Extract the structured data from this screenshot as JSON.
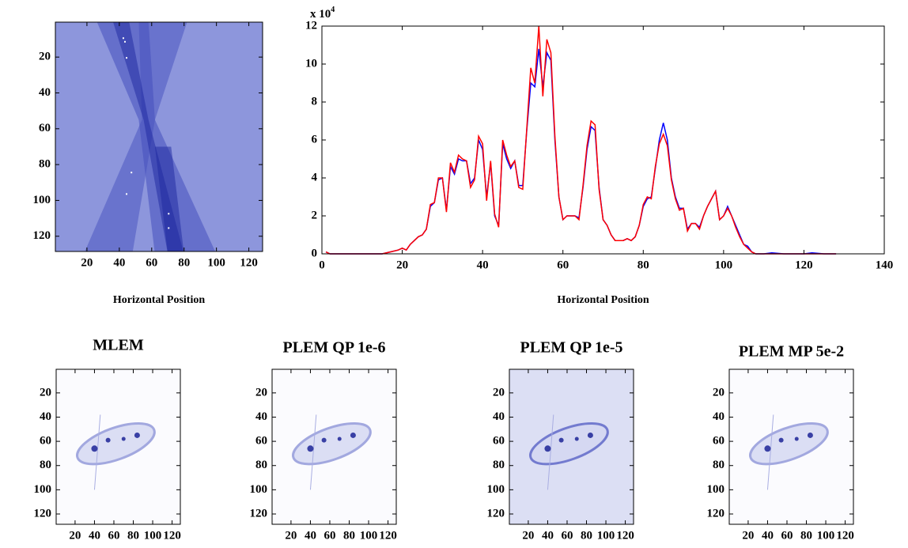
{
  "chart_data": [
    {
      "type": "image",
      "xlabel": "Horizontal Position",
      "xlim": [
        0.5,
        128.5
      ],
      "ylim": [
        0.5,
        128.5
      ],
      "y_reversed": true,
      "xticks": [
        20,
        40,
        60,
        80,
        100,
        120
      ],
      "yticks": [
        20,
        40,
        60,
        80,
        100,
        120
      ]
    },
    {
      "type": "line",
      "xlabel": "Horizontal Position",
      "y_scale_label": "x 10",
      "y_scale_exponent": 4,
      "xlim": [
        0,
        140
      ],
      "ylim": [
        0,
        12
      ],
      "xticks": [
        0,
        20,
        40,
        60,
        80,
        100,
        120,
        140
      ],
      "yticks": [
        0,
        2,
        4,
        6,
        8,
        10,
        12
      ],
      "x": [
        1,
        2,
        5,
        10,
        15,
        17,
        19,
        20,
        21,
        22,
        24,
        25,
        26,
        27,
        28,
        29,
        30,
        31,
        32,
        33,
        34,
        35,
        36,
        37,
        38,
        39,
        40,
        41,
        42,
        43,
        44,
        45,
        46,
        47,
        48,
        49,
        50,
        51,
        52,
        53,
        54,
        55,
        56,
        57,
        58,
        59,
        60,
        61,
        62,
        63,
        64,
        65,
        66,
        67,
        68,
        69,
        70,
        71,
        72,
        73,
        74,
        75,
        76,
        77,
        78,
        79,
        80,
        81,
        82,
        83,
        84,
        85,
        86,
        87,
        88,
        89,
        90,
        91,
        92,
        93,
        94,
        95,
        96,
        97,
        98,
        99,
        100,
        101,
        102,
        103,
        104,
        105,
        106,
        107,
        108,
        110,
        112,
        115,
        120,
        122,
        125,
        128
      ],
      "series": [
        {
          "color": "#0000ff",
          "values": [
            0.1,
            0,
            0,
            0,
            0,
            0.1,
            0.2,
            0.3,
            0.2,
            0.5,
            0.9,
            1.0,
            1.3,
            2.5,
            2.7,
            3.9,
            4.0,
            2.3,
            4.6,
            4.2,
            5.0,
            4.9,
            4.9,
            3.7,
            4.0,
            6.0,
            5.5,
            3.0,
            4.8,
            2.0,
            1.5,
            5.8,
            5.0,
            4.5,
            4.9,
            3.6,
            3.6,
            6.5,
            9.0,
            8.8,
            10.8,
            8.8,
            10.6,
            10.2,
            6.0,
            3.0,
            1.8,
            2.0,
            2.0,
            2.0,
            1.9,
            3.5,
            5.5,
            6.7,
            6.5,
            3.5,
            1.8,
            1.5,
            1.0,
            0.7,
            0.7,
            0.7,
            0.8,
            0.7,
            0.9,
            1.5,
            2.5,
            2.9,
            3.0,
            4.5,
            6.0,
            6.9,
            6.0,
            4.0,
            3.0,
            2.4,
            2.4,
            1.3,
            1.6,
            1.6,
            1.4,
            2.0,
            2.5,
            2.9,
            3.3,
            1.8,
            2.0,
            2.5,
            2.0,
            1.5,
            1.0,
            0.5,
            0.4,
            0.1,
            0,
            0,
            0.05,
            0,
            0,
            0.05,
            0,
            0
          ]
        },
        {
          "color": "#ff0000",
          "values": [
            0.1,
            0,
            0,
            0,
            0,
            0.1,
            0.2,
            0.3,
            0.2,
            0.5,
            0.9,
            1.0,
            1.3,
            2.6,
            2.7,
            4.0,
            4.0,
            2.2,
            4.8,
            4.3,
            5.2,
            5.0,
            4.9,
            3.5,
            3.9,
            6.2,
            5.8,
            2.8,
            4.9,
            2.1,
            1.4,
            6.0,
            5.2,
            4.6,
            4.9,
            3.5,
            3.4,
            6.6,
            9.8,
            9.0,
            12.0,
            8.3,
            11.3,
            10.6,
            6.2,
            3.0,
            1.8,
            2.0,
            2.0,
            2.0,
            1.8,
            3.6,
            5.7,
            7.0,
            6.8,
            3.4,
            1.8,
            1.5,
            1.0,
            0.7,
            0.7,
            0.7,
            0.8,
            0.7,
            0.9,
            1.5,
            2.6,
            3.0,
            2.9,
            4.6,
            5.8,
            6.3,
            5.7,
            3.9,
            2.9,
            2.3,
            2.4,
            1.2,
            1.6,
            1.6,
            1.3,
            2.0,
            2.5,
            2.9,
            3.3,
            1.8,
            2.0,
            2.4,
            2.0,
            1.4,
            0.9,
            0.5,
            0.3,
            0.1,
            0,
            0,
            0,
            0,
            0,
            0,
            0,
            0
          ]
        }
      ]
    },
    {
      "type": "image",
      "title": "MLEM",
      "xlim": [
        0.5,
        128.5
      ],
      "ylim": [
        0.5,
        128.5
      ],
      "y_reversed": true,
      "xticks": [
        20,
        40,
        60,
        80,
        100,
        120
      ],
      "yticks": [
        20,
        40,
        60,
        80,
        100,
        120
      ]
    },
    {
      "type": "image",
      "title": "PLEM QP 1e-6",
      "xlim": [
        0.5,
        128.5
      ],
      "ylim": [
        0.5,
        128.5
      ],
      "y_reversed": true,
      "xticks": [
        20,
        40,
        60,
        80,
        100,
        120
      ],
      "yticks": [
        20,
        40,
        60,
        80,
        100,
        120
      ]
    },
    {
      "type": "image",
      "title": "PLEM QP 1e-5",
      "xlim": [
        0.5,
        128.5
      ],
      "ylim": [
        0.5,
        128.5
      ],
      "y_reversed": true,
      "xticks": [
        20,
        40,
        60,
        80,
        100,
        120
      ],
      "yticks": [
        20,
        40,
        60,
        80,
        100,
        120
      ]
    },
    {
      "type": "image",
      "title": "PLEM MP 5e-2",
      "xlim": [
        0.5,
        128.5
      ],
      "ylim": [
        0.5,
        128.5
      ],
      "y_reversed": true,
      "xticks": [
        20,
        40,
        60,
        80,
        100,
        120
      ],
      "yticks": [
        20,
        40,
        60,
        80,
        100,
        120
      ]
    }
  ]
}
